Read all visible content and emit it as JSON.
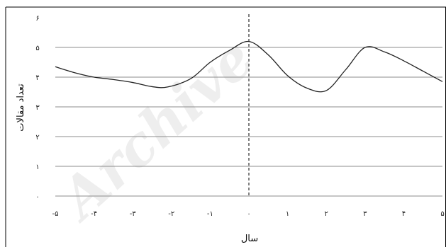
{
  "chart_data": {
    "type": "line",
    "xlabel": "سال",
    "ylabel": "تعداد مقالات",
    "xlim": [
      -5,
      5
    ],
    "ylim": [
      0,
      6
    ],
    "x_ticks": [
      {
        "value": -5,
        "label": "-۵"
      },
      {
        "value": -4,
        "label": "-۴"
      },
      {
        "value": -3,
        "label": "-۳"
      },
      {
        "value": -2,
        "label": "-۲"
      },
      {
        "value": -1,
        "label": "-۱"
      },
      {
        "value": 0,
        "label": "۰"
      },
      {
        "value": 1,
        "label": "۱"
      },
      {
        "value": 2,
        "label": "۲"
      },
      {
        "value": 3,
        "label": "۳"
      },
      {
        "value": 4,
        "label": "۴"
      },
      {
        "value": 5,
        "label": "۵"
      }
    ],
    "y_ticks": [
      {
        "value": 0,
        "label": "۰"
      },
      {
        "value": 1,
        "label": "۱"
      },
      {
        "value": 2,
        "label": "۲"
      },
      {
        "value": 3,
        "label": "۳"
      },
      {
        "value": 4,
        "label": "۴"
      },
      {
        "value": 5,
        "label": "۵"
      },
      {
        "value": 6,
        "label": "۶"
      }
    ],
    "grid": true,
    "reference_line": {
      "x": 0,
      "style": "dashed"
    },
    "series": [
      {
        "x": [
          -5,
          -4.5,
          -4,
          -3.5,
          -3,
          -2.5,
          -2.1,
          -1.5,
          -1,
          -0.5,
          0,
          0.5,
          1,
          1.5,
          2,
          2.5,
          3,
          3.5,
          4,
          4.5,
          5
        ],
        "values": [
          4.35,
          4.15,
          4.0,
          3.92,
          3.82,
          3.68,
          3.67,
          3.95,
          4.5,
          4.9,
          5.2,
          4.75,
          4.05,
          3.63,
          3.55,
          4.25,
          5.0,
          4.85,
          4.55,
          4.2,
          3.85
        ],
        "color": "#222222"
      }
    ],
    "watermark": "Archive"
  }
}
